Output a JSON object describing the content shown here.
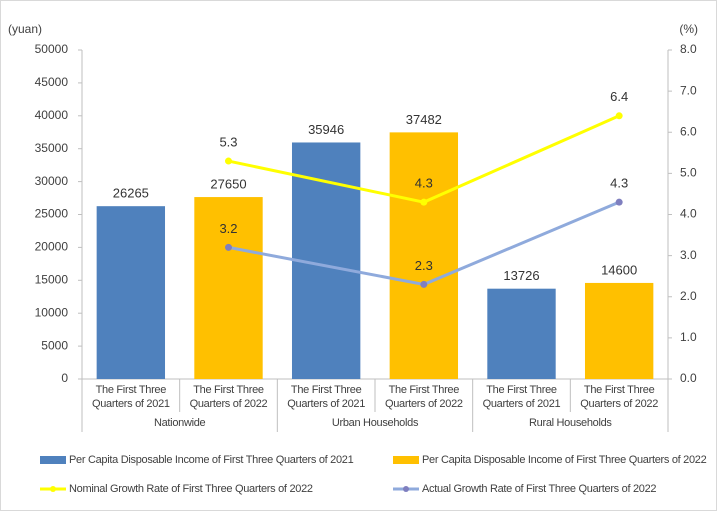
{
  "chart_data": {
    "type": "bar",
    "y_label": "(yuan)",
    "y2_label": "(%)",
    "categories": [
      "Nationwide",
      "Urban Households",
      "Rural Households"
    ],
    "subcategories": [
      "The First Three Quarters of 2021",
      "The First Three Quarters of 2022"
    ],
    "series": [
      {
        "name": "Per Capita Disposable Income of First Three Quarters of 2021",
        "type": "bar",
        "sub": 0,
        "color": "#4f81bd",
        "values": [
          26265,
          35946,
          13726
        ]
      },
      {
        "name": "Per Capita Disposable Income of First Three Quarters of 2022",
        "type": "bar",
        "sub": 1,
        "color": "#ffc000",
        "values": [
          27650,
          37482,
          14600
        ]
      },
      {
        "name": "Nominal Growth Rate of First Three Quarters of 2022",
        "type": "line",
        "sub": 1,
        "axis": "y2",
        "color": "#ffff00",
        "values": [
          5.3,
          4.3,
          6.4
        ]
      },
      {
        "name": "Actual Growth Rate of First Three Quarters of 2022",
        "type": "line",
        "sub": 1,
        "axis": "y2",
        "color": "#8faadc",
        "marker_color": "#7f7fbf",
        "values": [
          3.2,
          2.3,
          4.3
        ]
      }
    ],
    "ylim": [
      0,
      50000
    ],
    "yticks": [
      0,
      5000,
      10000,
      15000,
      20000,
      25000,
      30000,
      35000,
      40000,
      45000,
      50000
    ],
    "y2lim": [
      0,
      8
    ],
    "y2ticks": [
      {
        "value": 0,
        "label": "0.0"
      },
      {
        "value": 1,
        "label": "1.0"
      },
      {
        "value": 2,
        "label": "2.0"
      },
      {
        "value": 3,
        "label": "3.0"
      },
      {
        "value": 4,
        "label": "4.0"
      },
      {
        "value": 5,
        "label": "5.0"
      },
      {
        "value": 6,
        "label": "6.0"
      },
      {
        "value": 7,
        "label": "7.0"
      },
      {
        "value": 8,
        "label": "8.0"
      }
    ],
    "grid": false
  }
}
